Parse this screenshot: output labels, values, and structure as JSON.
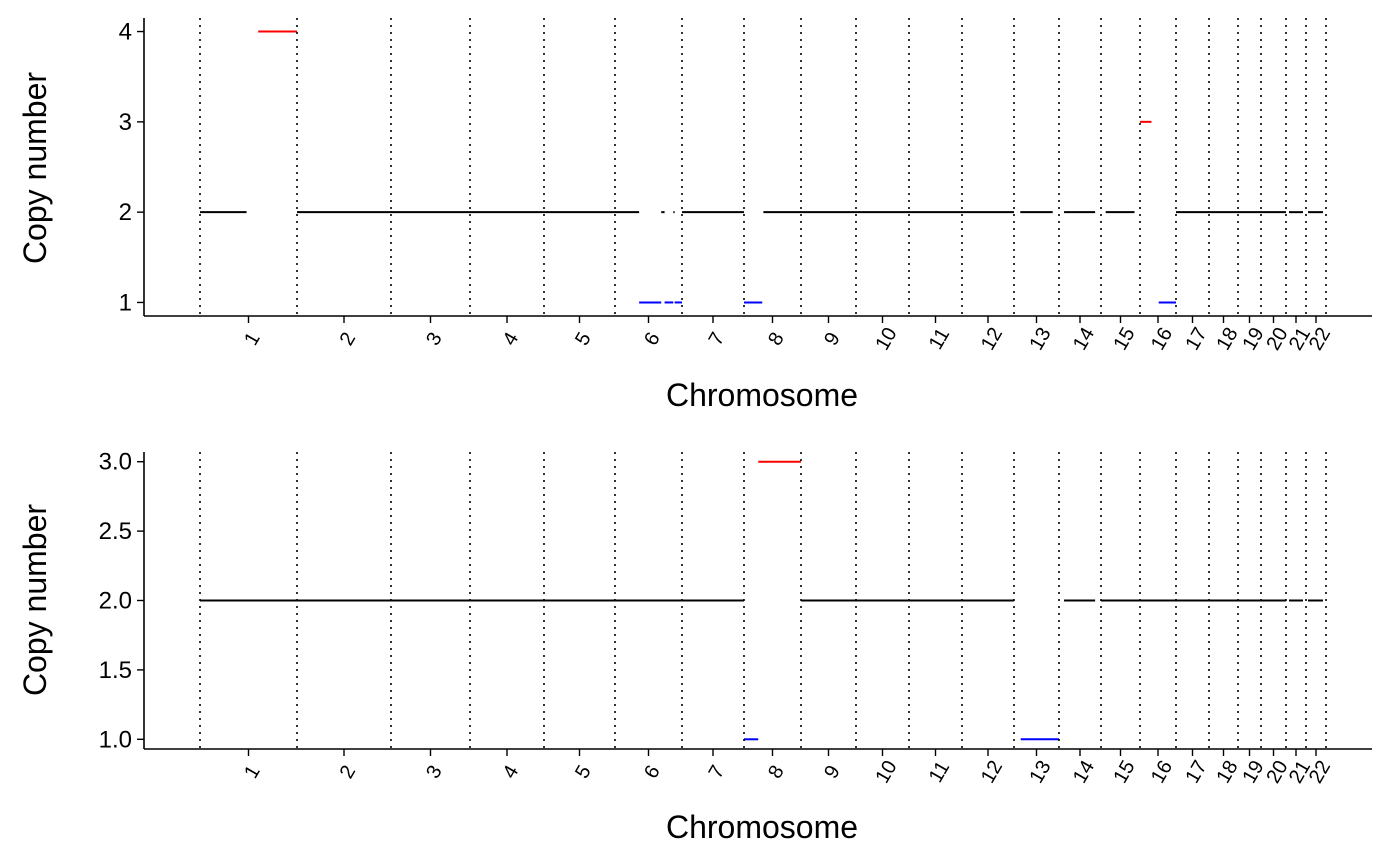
{
  "chart_data": [
    {
      "type": "line",
      "xlabel": "Chromosome",
      "ylabel": "Copy number",
      "ylim": [
        0.85,
        4.15
      ],
      "yticks": [
        1,
        2,
        3,
        4
      ],
      "ytick_labels": [
        "1",
        "2",
        "3",
        "4"
      ],
      "grid": false,
      "chromosomes": [
        "1",
        "2",
        "3",
        "4",
        "5",
        "6",
        "7",
        "8",
        "9",
        "10",
        "11",
        "12",
        "13",
        "14",
        "15",
        "16",
        "17",
        "18",
        "19",
        "20",
        "21",
        "22"
      ],
      "segment_colors": {
        "neutral": "#000000",
        "gain": "#ff0000",
        "loss": "#0000ff"
      },
      "segments": [
        {
          "chr": "1",
          "start": 0.0,
          "end": 0.48,
          "cn": 2,
          "status": "neutral"
        },
        {
          "chr": "1",
          "start": 0.6,
          "end": 1.0,
          "cn": 4,
          "status": "gain"
        },
        {
          "chr": "2",
          "start": 0.0,
          "end": 1.0,
          "cn": 2,
          "status": "neutral"
        },
        {
          "chr": "3",
          "start": 0.0,
          "end": 1.0,
          "cn": 2,
          "status": "neutral"
        },
        {
          "chr": "4",
          "start": 0.0,
          "end": 1.0,
          "cn": 2,
          "status": "neutral"
        },
        {
          "chr": "5",
          "start": 0.0,
          "end": 1.0,
          "cn": 2,
          "status": "neutral"
        },
        {
          "chr": "6",
          "start": 0.0,
          "end": 0.36,
          "cn": 2,
          "status": "neutral"
        },
        {
          "chr": "6",
          "start": 0.36,
          "end": 0.69,
          "cn": 1,
          "status": "loss"
        },
        {
          "chr": "6",
          "start": 0.69,
          "end": 0.74,
          "cn": 2,
          "status": "neutral"
        },
        {
          "chr": "6",
          "start": 0.74,
          "end": 0.87,
          "cn": 1,
          "status": "loss"
        },
        {
          "chr": "6",
          "start": 0.87,
          "end": 0.89,
          "cn": 2,
          "status": "neutral"
        },
        {
          "chr": "6",
          "start": 0.89,
          "end": 1.0,
          "cn": 1,
          "status": "loss"
        },
        {
          "chr": "7",
          "start": 0.0,
          "end": 1.0,
          "cn": 2,
          "status": "neutral"
        },
        {
          "chr": "8",
          "start": 0.0,
          "end": 0.32,
          "cn": 1,
          "status": "loss"
        },
        {
          "chr": "8",
          "start": 0.34,
          "end": 1.0,
          "cn": 2,
          "status": "neutral"
        },
        {
          "chr": "9",
          "start": 0.0,
          "end": 1.0,
          "cn": 2,
          "status": "neutral"
        },
        {
          "chr": "10",
          "start": 0.0,
          "end": 1.0,
          "cn": 2,
          "status": "neutral"
        },
        {
          "chr": "11",
          "start": 0.0,
          "end": 1.0,
          "cn": 2,
          "status": "neutral"
        },
        {
          "chr": "12",
          "start": 0.0,
          "end": 1.0,
          "cn": 2,
          "status": "neutral"
        },
        {
          "chr": "13",
          "start": 0.14,
          "end": 0.86,
          "cn": 2,
          "status": "neutral"
        },
        {
          "chr": "14",
          "start": 0.12,
          "end": 0.86,
          "cn": 2,
          "status": "neutral"
        },
        {
          "chr": "15",
          "start": 0.12,
          "end": 0.86,
          "cn": 2,
          "status": "neutral"
        },
        {
          "chr": "16",
          "start": 0.0,
          "end": 0.32,
          "cn": 3,
          "status": "gain"
        },
        {
          "chr": "16",
          "start": 0.52,
          "end": 1.0,
          "cn": 1,
          "status": "loss"
        },
        {
          "chr": "17",
          "start": 0.0,
          "end": 1.0,
          "cn": 2,
          "status": "neutral"
        },
        {
          "chr": "18",
          "start": 0.0,
          "end": 1.0,
          "cn": 2,
          "status": "neutral"
        },
        {
          "chr": "19",
          "start": 0.0,
          "end": 1.0,
          "cn": 2,
          "status": "neutral"
        },
        {
          "chr": "20",
          "start": 0.0,
          "end": 1.0,
          "cn": 2,
          "status": "neutral"
        },
        {
          "chr": "21",
          "start": 0.15,
          "end": 0.85,
          "cn": 2,
          "status": "neutral"
        },
        {
          "chr": "22",
          "start": 0.1,
          "end": 0.85,
          "cn": 2,
          "status": "neutral"
        }
      ]
    },
    {
      "type": "line",
      "xlabel": "Chromosome",
      "ylabel": "Copy number",
      "ylim": [
        0.93,
        3.07
      ],
      "yticks": [
        1.0,
        1.5,
        2.0,
        2.5,
        3.0
      ],
      "ytick_labels": [
        "1.0",
        "1.5",
        "2.0",
        "2.5",
        "3.0"
      ],
      "grid": false,
      "chromosomes": [
        "1",
        "2",
        "3",
        "4",
        "5",
        "6",
        "7",
        "8",
        "9",
        "10",
        "11",
        "12",
        "13",
        "14",
        "15",
        "16",
        "17",
        "18",
        "19",
        "20",
        "21",
        "22"
      ],
      "segment_colors": {
        "neutral": "#000000",
        "gain": "#ff0000",
        "loss": "#0000ff"
      },
      "segments": [
        {
          "chr": "1",
          "start": 0.0,
          "end": 1.0,
          "cn": 2,
          "status": "neutral"
        },
        {
          "chr": "2",
          "start": 0.0,
          "end": 1.0,
          "cn": 2,
          "status": "neutral"
        },
        {
          "chr": "3",
          "start": 0.0,
          "end": 1.0,
          "cn": 2,
          "status": "neutral"
        },
        {
          "chr": "4",
          "start": 0.0,
          "end": 1.0,
          "cn": 2,
          "status": "neutral"
        },
        {
          "chr": "5",
          "start": 0.0,
          "end": 1.0,
          "cn": 2,
          "status": "neutral"
        },
        {
          "chr": "6",
          "start": 0.0,
          "end": 1.0,
          "cn": 2,
          "status": "neutral"
        },
        {
          "chr": "7",
          "start": 0.0,
          "end": 1.0,
          "cn": 2,
          "status": "neutral"
        },
        {
          "chr": "8",
          "start": 0.0,
          "end": 0.25,
          "cn": 1,
          "status": "loss"
        },
        {
          "chr": "8",
          "start": 0.25,
          "end": 1.0,
          "cn": 3,
          "status": "gain"
        },
        {
          "chr": "9",
          "start": 0.0,
          "end": 1.0,
          "cn": 2,
          "status": "neutral"
        },
        {
          "chr": "10",
          "start": 0.0,
          "end": 1.0,
          "cn": 2,
          "status": "neutral"
        },
        {
          "chr": "11",
          "start": 0.0,
          "end": 1.0,
          "cn": 2,
          "status": "neutral"
        },
        {
          "chr": "12",
          "start": 0.0,
          "end": 1.0,
          "cn": 2,
          "status": "neutral"
        },
        {
          "chr": "13",
          "start": 0.15,
          "end": 1.0,
          "cn": 1,
          "status": "loss"
        },
        {
          "chr": "14",
          "start": 0.12,
          "end": 0.86,
          "cn": 2,
          "status": "neutral"
        },
        {
          "chr": "15",
          "start": 0.0,
          "end": 1.0,
          "cn": 2,
          "status": "neutral"
        },
        {
          "chr": "16",
          "start": 0.0,
          "end": 1.0,
          "cn": 2,
          "status": "neutral"
        },
        {
          "chr": "17",
          "start": 0.0,
          "end": 1.0,
          "cn": 2,
          "status": "neutral"
        },
        {
          "chr": "18",
          "start": 0.0,
          "end": 1.0,
          "cn": 2,
          "status": "neutral"
        },
        {
          "chr": "19",
          "start": 0.0,
          "end": 1.0,
          "cn": 2,
          "status": "neutral"
        },
        {
          "chr": "20",
          "start": 0.0,
          "end": 1.0,
          "cn": 2,
          "status": "neutral"
        },
        {
          "chr": "21",
          "start": 0.15,
          "end": 0.85,
          "cn": 2,
          "status": "neutral"
        },
        {
          "chr": "22",
          "start": 0.1,
          "end": 0.85,
          "cn": 2,
          "status": "neutral"
        }
      ]
    }
  ]
}
